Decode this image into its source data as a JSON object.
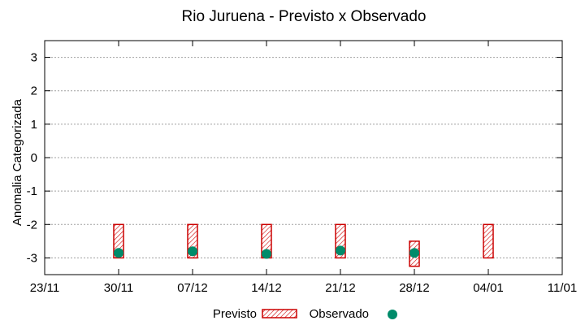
{
  "chart_data": {
    "type": "bar",
    "title": "Rio Juruena - Previsto x Observado",
    "xlabel": "",
    "ylabel": "Anomalia Categorizada",
    "ylim": [
      -3.5,
      3.5
    ],
    "yticks": [
      3,
      2,
      1,
      0,
      -1,
      -2,
      -3
    ],
    "xticks": [
      "23/11",
      "30/11",
      "07/12",
      "14/12",
      "21/12",
      "28/12",
      "04/01",
      "11/01"
    ],
    "grid": true,
    "legend_position": "bottom",
    "series": [
      {
        "name": "Previsto",
        "kind": "floating-bar",
        "color": "#cc0000",
        "bars": [
          {
            "x": "30/11",
            "low": -3.0,
            "high": -2.0
          },
          {
            "x": "07/12",
            "low": -3.0,
            "high": -2.0
          },
          {
            "x": "14/12",
            "low": -3.0,
            "high": -2.0
          },
          {
            "x": "21/12",
            "low": -3.0,
            "high": -2.0
          },
          {
            "x": "28/12",
            "low": -3.25,
            "high": -2.5
          },
          {
            "x": "04/01",
            "low": -3.0,
            "high": -2.0
          }
        ]
      },
      {
        "name": "Observado",
        "kind": "point",
        "color": "#008b6a",
        "points": [
          {
            "x": "30/11",
            "y": -2.85
          },
          {
            "x": "07/12",
            "y": -2.8
          },
          {
            "x": "14/12",
            "y": -2.88
          },
          {
            "x": "21/12",
            "y": -2.78
          },
          {
            "x": "28/12",
            "y": -2.85
          }
        ]
      }
    ]
  }
}
